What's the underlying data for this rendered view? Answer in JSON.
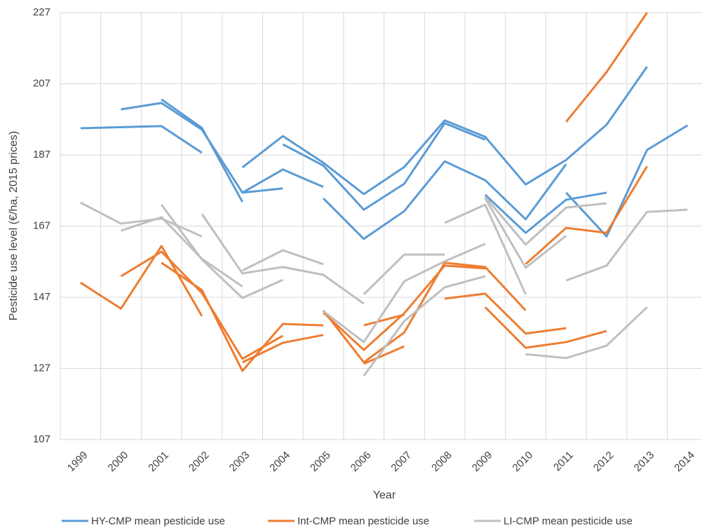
{
  "chart_data": {
    "type": "line",
    "x_label": "Year",
    "y_label": "Pesticide use level (€/ha, 2015 prices)",
    "categories": [
      "1999",
      "2000",
      "2001",
      "2002",
      "2003",
      "2004",
      "2005",
      "2006",
      "2007",
      "2008",
      "2009",
      "2010",
      "2011",
      "2012",
      "2013",
      "2014"
    ],
    "ylim": [
      107,
      227
    ],
    "yticks": [
      107,
      127,
      147,
      167,
      187,
      207,
      227
    ],
    "grid": true,
    "legend": "bottom",
    "series": [
      {
        "name": "HY-CMP mean pesticide use",
        "color": "#5b9bd5",
        "lines": [
          [
            194.5,
            194.8,
            195.1,
            187.6,
            null,
            null,
            null,
            null,
            null,
            null,
            null,
            null,
            null,
            null,
            null,
            null
          ],
          [
            null,
            199.8,
            201.6,
            194.1,
            176.4,
            177.6,
            null,
            null,
            null,
            null,
            null,
            null,
            null,
            null,
            null,
            null
          ],
          [
            null,
            null,
            202.6,
            194.6,
            173.8,
            null,
            null,
            null,
            null,
            null,
            null,
            null,
            null,
            null,
            null,
            null
          ],
          [
            null,
            null,
            null,
            null,
            183.5,
            192.3,
            184.8,
            176,
            183.6,
            196.7,
            192.1,
            178.7,
            185.6,
            195.5,
            211.8,
            null
          ],
          [
            null,
            null,
            null,
            null,
            176.4,
            182.9,
            178,
            null,
            null,
            null,
            null,
            null,
            null,
            null,
            null,
            null
          ],
          [
            null,
            null,
            null,
            null,
            null,
            190,
            184,
            171.6,
            178.9,
            195.9,
            191.3,
            null,
            null,
            null,
            null,
            null
          ],
          [
            null,
            null,
            null,
            null,
            null,
            null,
            174.8,
            163.4,
            171.2,
            185.2,
            179.9,
            168.9,
            184.4,
            null,
            null,
            null
          ],
          [
            null,
            null,
            null,
            null,
            null,
            null,
            null,
            null,
            null,
            null,
            175.8,
            165.1,
            174.4,
            176.4,
            null,
            null
          ],
          [
            null,
            null,
            null,
            null,
            null,
            null,
            null,
            null,
            null,
            null,
            null,
            null,
            176.4,
            164.1,
            188.4,
            195.3
          ]
        ]
      },
      {
        "name": "Int-CMP mean pesticide use",
        "color": "#ed7d31",
        "lines": [
          [
            151.1,
            143.8,
            161.4,
            141.7,
            null,
            null,
            null,
            null,
            null,
            null,
            null,
            null,
            null,
            null,
            null,
            null
          ],
          [
            null,
            152.9,
            159.8,
            148.2,
            129.7,
            136.2,
            null,
            null,
            null,
            null,
            null,
            null,
            null,
            null,
            null,
            null
          ],
          [
            null,
            null,
            156.7,
            149,
            126.3,
            139.5,
            139.1,
            null,
            null,
            null,
            null,
            null,
            null,
            null,
            null,
            null
          ],
          [
            null,
            null,
            null,
            null,
            128.7,
            134.2,
            136.4,
            null,
            null,
            null,
            null,
            null,
            null,
            null,
            null,
            null
          ],
          [
            null,
            null,
            null,
            null,
            null,
            null,
            143.3,
            128.7,
            137.1,
            156.7,
            155.5,
            143.3,
            null,
            null,
            null,
            null
          ],
          [
            null,
            null,
            null,
            null,
            null,
            null,
            142.7,
            132.2,
            142.5,
            155.9,
            155.1,
            null,
            null,
            null,
            null,
            null
          ],
          [
            null,
            null,
            null,
            null,
            null,
            null,
            null,
            139.1,
            142.1,
            null,
            null,
            null,
            null,
            null,
            null,
            null
          ],
          [
            null,
            null,
            null,
            null,
            null,
            null,
            null,
            128.3,
            133.2,
            null,
            null,
            null,
            null,
            null,
            null,
            null
          ],
          [
            null,
            null,
            null,
            null,
            null,
            null,
            null,
            null,
            null,
            146.6,
            148,
            136.8,
            138.3,
            null,
            null,
            null
          ],
          [
            null,
            null,
            null,
            null,
            null,
            null,
            null,
            null,
            null,
            null,
            144.2,
            132.8,
            134.4,
            137.5,
            null,
            null
          ],
          [
            null,
            null,
            null,
            null,
            null,
            null,
            null,
            null,
            null,
            null,
            null,
            156.3,
            166.5,
            165.1,
            183.8,
            null
          ],
          [
            null,
            null,
            null,
            null,
            null,
            null,
            null,
            null,
            null,
            null,
            null,
            null,
            196.3,
            210.3,
            227,
            null
          ]
        ]
      },
      {
        "name": "LI-CMP mean pesticide use",
        "color": "#bfbfbf",
        "lines": [
          [
            173.6,
            167.7,
            169.1,
            164.1,
            null,
            null,
            null,
            null,
            null,
            null,
            null,
            null,
            null,
            null,
            null,
            null
          ],
          [
            null,
            165.7,
            169.5,
            157.8,
            150,
            null,
            null,
            null,
            null,
            null,
            null,
            null,
            null,
            null,
            null,
            null
          ],
          [
            null,
            null,
            173,
            157.6,
            146.8,
            151.9,
            null,
            null,
            null,
            null,
            null,
            null,
            null,
            null,
            null,
            null
          ],
          [
            null,
            null,
            null,
            170.4,
            153.7,
            155.5,
            153.3,
            145.2,
            null,
            null,
            null,
            null,
            null,
            null,
            null,
            null
          ],
          [
            null,
            null,
            null,
            null,
            154.5,
            160.2,
            156.3,
            null,
            null,
            null,
            null,
            null,
            null,
            null,
            null,
            null
          ],
          [
            null,
            null,
            null,
            null,
            null,
            null,
            143.1,
            134.4,
            151.5,
            157.1,
            162,
            null,
            null,
            null,
            null,
            null
          ],
          [
            null,
            null,
            null,
            null,
            null,
            null,
            null,
            147.8,
            159,
            159,
            null,
            null,
            null,
            null,
            null,
            null
          ],
          [
            null,
            null,
            null,
            null,
            null,
            null,
            null,
            124.9,
            140.3,
            149.8,
            152.9,
            null,
            null,
            null,
            null,
            null
          ],
          [
            null,
            null,
            null,
            null,
            null,
            null,
            null,
            null,
            null,
            167.9,
            173,
            147.8,
            null,
            null,
            null,
            null
          ],
          [
            null,
            null,
            null,
            null,
            null,
            null,
            null,
            null,
            null,
            null,
            175.2,
            161.8,
            172.2,
            173.4,
            null,
            null
          ],
          [
            null,
            null,
            null,
            null,
            null,
            null,
            null,
            null,
            null,
            null,
            174.8,
            155.3,
            164.3,
            null,
            null,
            null
          ],
          [
            null,
            null,
            null,
            null,
            null,
            null,
            null,
            null,
            null,
            null,
            null,
            131,
            129.9,
            133.4,
            144.2,
            null
          ],
          [
            null,
            null,
            null,
            null,
            null,
            null,
            null,
            null,
            null,
            null,
            null,
            null,
            151.7,
            155.9,
            171,
            171.6
          ]
        ]
      }
    ]
  }
}
